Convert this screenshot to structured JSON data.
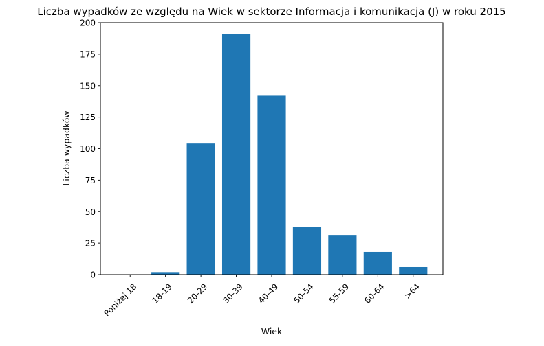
{
  "chart_data": {
    "type": "bar",
    "title": "Liczba wypadków ze względu na Wiek w sektorze Informacja i komunikacja (J)   w roku 2015",
    "xlabel": "Wiek",
    "ylabel": "Liczba wypadków",
    "categories": [
      "Poniżej 18",
      "18-19",
      "20-29",
      "30-39",
      "40-49",
      "50-54",
      "55-59",
      "60-64",
      ">64"
    ],
    "values": [
      0,
      2,
      104,
      191,
      142,
      38,
      31,
      18,
      6
    ],
    "ylim": [
      0,
      200
    ],
    "yticks": [
      0,
      25,
      50,
      75,
      100,
      125,
      150,
      175,
      200
    ],
    "grid": false,
    "bar_color": "#1f77b4"
  }
}
